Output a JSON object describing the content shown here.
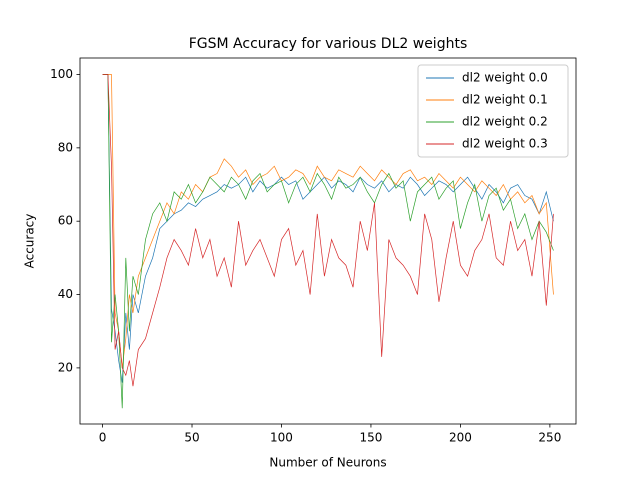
{
  "chart_data": {
    "type": "line",
    "title": "FGSM Accuracy for various DL2 weights",
    "x_label": "Number of Neurons",
    "y_label": "Accuracy",
    "x": [
      0,
      3,
      5,
      7,
      9,
      11,
      13,
      15,
      17,
      20,
      24,
      28,
      32,
      36,
      40,
      44,
      48,
      52,
      56,
      60,
      64,
      68,
      72,
      76,
      80,
      84,
      88,
      92,
      96,
      100,
      104,
      108,
      112,
      116,
      120,
      124,
      128,
      132,
      136,
      140,
      144,
      148,
      152,
      156,
      160,
      164,
      168,
      172,
      176,
      180,
      184,
      188,
      192,
      196,
      200,
      204,
      208,
      212,
      216,
      220,
      224,
      228,
      232,
      236,
      240,
      244,
      248,
      252
    ],
    "series": [
      {
        "name": "dl2 weight 0.0",
        "color": "#1f77b4",
        "values": [
          100,
          100,
          36,
          30,
          22,
          16,
          35,
          25,
          40,
          35,
          45,
          50,
          58,
          60,
          62,
          63,
          65,
          64,
          66,
          67,
          68,
          70,
          69,
          70,
          72,
          68,
          71,
          69,
          70,
          72,
          70,
          71,
          66,
          68,
          70,
          72,
          69,
          71,
          70,
          68,
          72,
          70,
          69,
          71,
          68,
          70,
          69,
          72,
          70,
          67,
          69,
          71,
          70,
          68,
          70,
          72,
          69,
          66,
          70,
          68,
          65,
          69,
          70,
          67,
          66,
          62,
          68,
          60
        ]
      },
      {
        "name": "dl2 weight 0.1",
        "color": "#ff7f0e",
        "values": [
          100,
          100,
          100,
          35,
          30,
          20,
          28,
          40,
          35,
          45,
          50,
          55,
          60,
          65,
          62,
          68,
          66,
          70,
          68,
          72,
          73,
          77,
          75,
          72,
          74,
          70,
          72,
          73,
          75,
          71,
          72,
          74,
          73,
          70,
          75,
          72,
          71,
          74,
          73,
          72,
          75,
          73,
          71,
          74,
          72,
          70,
          73,
          74,
          71,
          72,
          70,
          73,
          71,
          69,
          72,
          70,
          68,
          71,
          69,
          67,
          70,
          66,
          68,
          65,
          67,
          62,
          65,
          40
        ]
      },
      {
        "name": "dl2 weight 0.2",
        "color": "#2ca02c",
        "values": [
          100,
          100,
          27,
          40,
          30,
          9,
          50,
          30,
          45,
          40,
          55,
          62,
          65,
          60,
          68,
          66,
          70,
          65,
          68,
          72,
          70,
          68,
          72,
          70,
          66,
          71,
          73,
          68,
          70,
          71,
          65,
          70,
          72,
          68,
          73,
          70,
          66,
          72,
          69,
          70,
          72,
          68,
          65,
          70,
          73,
          69,
          71,
          60,
          68,
          70,
          72,
          66,
          69,
          71,
          58,
          65,
          70,
          60,
          67,
          69,
          63,
          66,
          58,
          62,
          55,
          60,
          57,
          52
        ]
      },
      {
        "name": "dl2 weight 0.3",
        "color": "#d62728",
        "values": [
          100,
          100,
          75,
          25,
          30,
          20,
          18,
          22,
          15,
          25,
          28,
          35,
          42,
          50,
          55,
          52,
          48,
          58,
          50,
          55,
          45,
          50,
          42,
          60,
          48,
          52,
          55,
          50,
          45,
          55,
          58,
          48,
          52,
          40,
          62,
          45,
          55,
          50,
          48,
          42,
          60,
          52,
          65,
          23,
          55,
          50,
          48,
          45,
          40,
          62,
          55,
          38,
          50,
          60,
          48,
          45,
          52,
          55,
          62,
          50,
          48,
          60,
          52,
          55,
          45,
          60,
          37,
          62
        ]
      }
    ],
    "xlim": [
      -12.6,
      264.6
    ],
    "ylim": [
      4.7,
      104.5
    ],
    "xticks": [
      0,
      50,
      100,
      150,
      200,
      250
    ],
    "yticks": [
      20,
      40,
      60,
      80,
      100
    ],
    "legend": "upper right"
  }
}
